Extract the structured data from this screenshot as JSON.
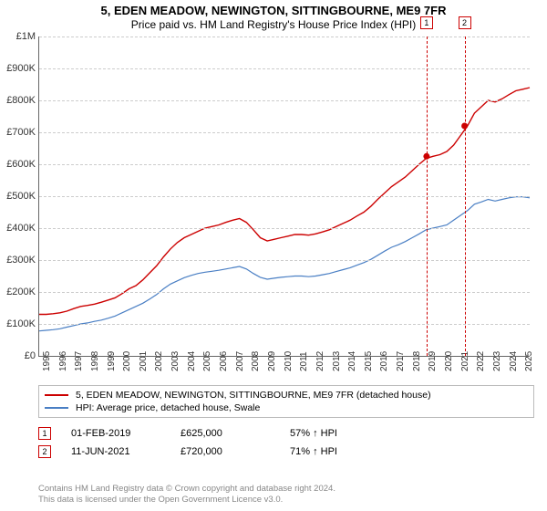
{
  "title": "5, EDEN MEADOW, NEWINGTON, SITTINGBOURNE, ME9 7FR",
  "subtitle": "Price paid vs. HM Land Registry's House Price Index (HPI)",
  "chart": {
    "type": "line",
    "x_start": 1995,
    "x_end": 2025.5,
    "xticks": [
      1995,
      1996,
      1997,
      1998,
      1999,
      2000,
      2001,
      2002,
      2003,
      2004,
      2005,
      2006,
      2007,
      2008,
      2009,
      2010,
      2011,
      2012,
      2013,
      2014,
      2015,
      2016,
      2017,
      2018,
      2019,
      2020,
      2021,
      2022,
      2023,
      2024,
      2025
    ],
    "ylim": [
      0,
      1000000
    ],
    "ytick_step": 100000,
    "ytick_labels": [
      "£0",
      "£100K",
      "£200K",
      "£300K",
      "£400K",
      "£500K",
      "£600K",
      "£700K",
      "£800K",
      "£900K",
      "£1M"
    ],
    "background_color": "#ffffff",
    "grid_color": "#cccccc",
    "axis_color": "#666666",
    "series": [
      {
        "name": "5, EDEN MEADOW, NEWINGTON, SITTINGBOURNE, ME9 7FR (detached house)",
        "color": "#cc0000",
        "width": 1.4,
        "y": [
          130,
          130,
          132,
          135,
          140,
          148,
          155,
          158,
          162,
          168,
          175,
          182,
          195,
          210,
          220,
          238,
          260,
          282,
          310,
          335,
          355,
          370,
          380,
          390,
          400,
          405,
          410,
          418,
          425,
          430,
          418,
          395,
          370,
          360,
          365,
          370,
          375,
          380,
          380,
          378,
          382,
          388,
          395,
          405,
          415,
          425,
          438,
          450,
          468,
          490,
          510,
          530,
          545,
          560,
          580,
          600,
          618,
          625,
          630,
          640,
          660,
          690,
          720,
          760,
          780,
          800,
          795,
          805,
          818,
          830,
          835,
          840
        ]
      },
      {
        "name": "HPI: Average price, detached house, Swale",
        "color": "#4a7fc4",
        "width": 1.2,
        "y": [
          78,
          80,
          82,
          85,
          90,
          95,
          100,
          103,
          108,
          112,
          118,
          125,
          135,
          145,
          155,
          165,
          178,
          192,
          210,
          225,
          235,
          245,
          252,
          258,
          262,
          265,
          268,
          272,
          276,
          280,
          272,
          258,
          246,
          240,
          243,
          246,
          248,
          250,
          250,
          248,
          250,
          254,
          258,
          264,
          270,
          276,
          284,
          292,
          302,
          315,
          328,
          340,
          348,
          358,
          370,
          382,
          395,
          400,
          405,
          410,
          425,
          440,
          455,
          475,
          482,
          490,
          485,
          490,
          495,
          498,
          498,
          495
        ]
      }
    ],
    "sales": [
      {
        "id": "1",
        "xyear": 2019.09,
        "yprice": 625000,
        "date": "01-FEB-2019",
        "price_fmt": "£625,000",
        "hpi": "57% ↑ HPI"
      },
      {
        "id": "2",
        "xyear": 2021.45,
        "yprice": 720000,
        "date": "11-JUN-2021",
        "price_fmt": "£720,000",
        "hpi": "71% ↑ HPI"
      }
    ],
    "sale_marker_color": "#cc0000"
  },
  "legend": [
    {
      "color": "#cc0000",
      "text": "5, EDEN MEADOW, NEWINGTON, SITTINGBOURNE, ME9 7FR (detached house)"
    },
    {
      "color": "#4a7fc4",
      "text": "HPI: Average price, detached house, Swale"
    }
  ],
  "footer": {
    "line1": "Contains HM Land Registry data © Crown copyright and database right 2024.",
    "line2": "This data is licensed under the Open Government Licence v3.0."
  }
}
